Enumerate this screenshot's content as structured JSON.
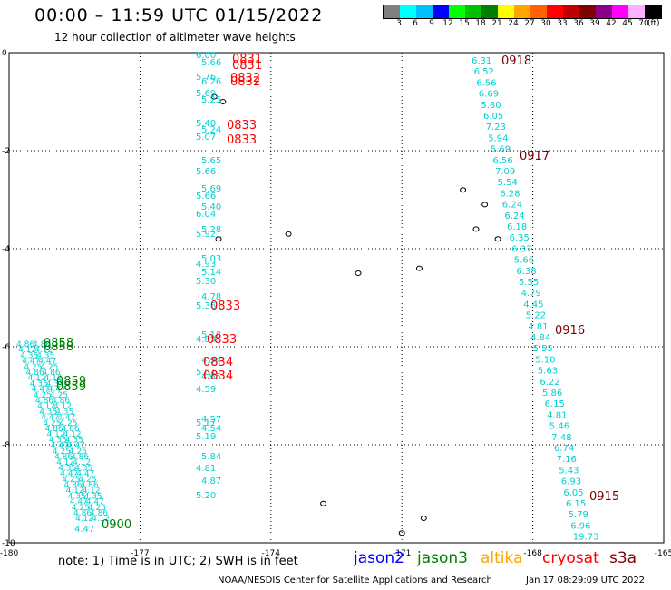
{
  "header": {
    "title": "00:00 – 11:59 UTC 01/15/2022",
    "subtitle": "12 hour collection of altimeter wave heights"
  },
  "legend": {
    "colors": [
      "#808080",
      "#00ffff",
      "#00bfff",
      "#0000ff",
      "#00ff00",
      "#00c000",
      "#008000",
      "#ffff00",
      "#ffa500",
      "#ff6000",
      "#ff0000",
      "#c00000",
      "#800000",
      "#8b008b",
      "#ff00ff",
      "#ffb0ff",
      "#000000"
    ],
    "labels": [
      "3",
      "6",
      "9",
      "12",
      "15",
      "18",
      "21",
      "24",
      "27",
      "30",
      "33",
      "36",
      "39",
      "42",
      "45",
      "70"
    ],
    "unit": "(ft)"
  },
  "axes": {
    "x_ticks": [
      "-180",
      "-177",
      "-174",
      "-171",
      "-168",
      "-165"
    ],
    "y_ticks": [
      "0",
      "-2",
      "-4",
      "-6",
      "-8",
      "-10"
    ]
  },
  "footer": {
    "note": "note: 1) Time is in UTC; 2) SWH is in feet",
    "missions": [
      {
        "name": "jason2",
        "color": "#0000ff"
      },
      {
        "name": "jason3",
        "color": "#008000"
      },
      {
        "name": "altika",
        "color": "#ffa500"
      },
      {
        "name": "cryosat",
        "color": "#ff0000"
      },
      {
        "name": "s3a",
        "color": "#800000"
      }
    ],
    "credit": "NOAA/NESDIS Center for Satellite Applications and Research",
    "timestamp": "Jan 17 08:29:09 UTC 2022"
  },
  "tracks": {
    "track1_values": [
      "6.00",
      "5.66",
      "5.76",
      "6.26",
      "5.69",
      "5.25",
      "5.40",
      "5.24",
      "5.07",
      "5.65",
      "5.66",
      "5.69",
      "5.66",
      "5.40",
      "6.04",
      "5.28",
      "5.92",
      "5.03",
      "4.93",
      "5.14",
      "5.30",
      "4.78",
      "5.36",
      "5.18",
      "4.89",
      "4.94",
      "5.01",
      "4.65",
      "4.59",
      "4.57",
      "5.17",
      "4.54",
      "5.19",
      "5.84",
      "4.81",
      "4.87",
      "5.20"
    ],
    "track1_times": [
      "0831",
      "0831",
      "0832",
      "0832",
      "0833",
      "0833",
      "0833",
      "0833",
      "0834",
      "0834"
    ],
    "track2_values": [
      "6.31",
      "6.52",
      "6.56",
      "6.69",
      "5.80",
      "6.05",
      "7.23",
      "5.94",
      "5.69",
      "6.56",
      "7.09",
      "5.54",
      "6.28",
      "6.24",
      "6.24",
      "6.18",
      "6.35",
      "6.37",
      "5.66",
      "6.38",
      "5.55",
      "4.79",
      "4.45",
      "5.22",
      "4.81",
      "4.84",
      "5.55",
      "5.10",
      "5.63",
      "6.22",
      "5.86",
      "6.15",
      "4.81",
      "5.46",
      "7.48",
      "6.74",
      "7.16",
      "5.43",
      "6.93",
      "6.05",
      "6.15",
      "5.79",
      "6.96",
      "19.73"
    ],
    "track2_times": [
      "0918",
      "0917",
      "0916",
      "0915"
    ],
    "track3_times": [
      "0858",
      "0858",
      "0859",
      "0859",
      "0900"
    ],
    "track3_values_sample": [
      "4.86",
      "4.12",
      "4.35",
      "4.47",
      "4.25"
    ]
  }
}
